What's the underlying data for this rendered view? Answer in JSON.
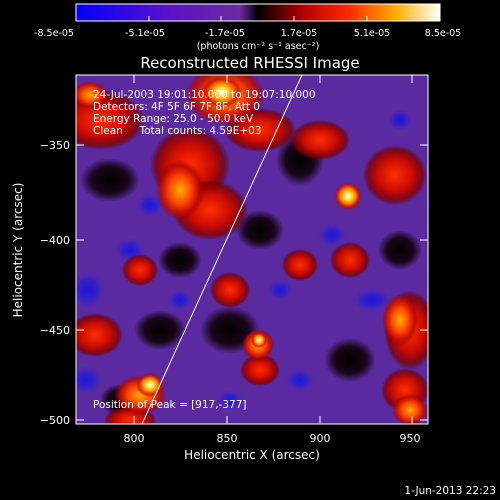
{
  "colorbar": {
    "ticks": [
      "-8.5e-05",
      "-5.1e-05",
      "-1.7e-05",
      "1.7e-05",
      "5.1e-05",
      "8.5e-05"
    ],
    "units_line": "(photons cm⁻² s⁻¹ asec⁻²)",
    "range": [
      -8.5e-05,
      8.5e-05
    ]
  },
  "plot": {
    "title": "Reconstructed RHESSI Image",
    "xlabel": "Heliocentric X (arcsec)",
    "ylabel": "Heliocentric Y (arcsec)",
    "xticks": [
      "800",
      "850",
      "900",
      "950"
    ],
    "yticks": [
      "−350",
      "−400",
      "−450",
      "−500"
    ],
    "xlim": [
      767,
      957
    ],
    "ylim": [
      -502,
      -308
    ]
  },
  "info": {
    "line1": "24-Jul-2003 19:01:10.000 to 19:07:10.000",
    "line2": "Detectors: 4F 5F 6F 7F 8F, Att 0",
    "line3": "Energy Range: 25.0 - 50.0 keV",
    "line4": "Clean     Total counts: 4.59E+03",
    "peak": "Position of Peak = [917,-377]"
  },
  "footer": {
    "date": "1-Jun-2013 22:23"
  },
  "colors": {
    "background": "#000000",
    "text": "#ffffff",
    "limb_line": "#ffffff"
  }
}
